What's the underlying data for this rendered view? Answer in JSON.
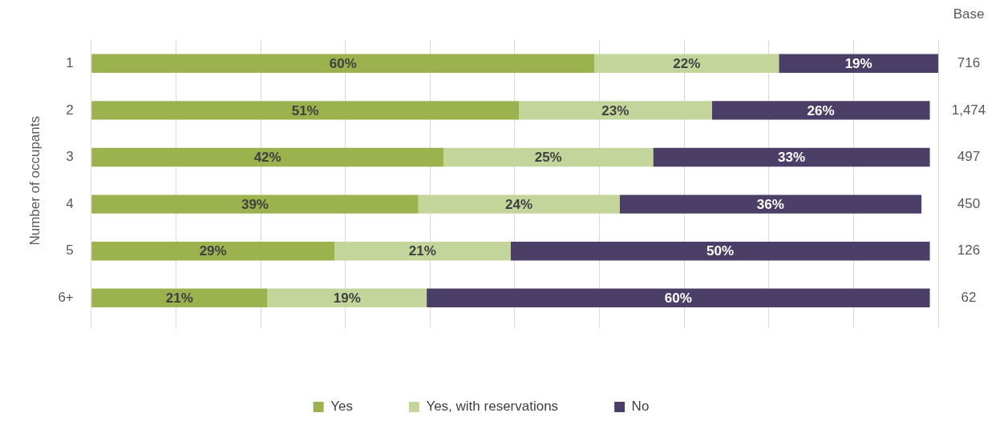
{
  "chart_data": {
    "type": "bar",
    "orientation": "horizontal",
    "stacked": true,
    "ylabel": "Number of occupants",
    "categories": [
      "1",
      "2",
      "3",
      "4",
      "5",
      "6+"
    ],
    "series": [
      {
        "name": "Yes",
        "color": "#9bb24f",
        "values": [
          60,
          51,
          42,
          39,
          29,
          21
        ],
        "value_labels": [
          "60%",
          "51%",
          "42%",
          "39%",
          "29%",
          "21%"
        ]
      },
      {
        "name": "Yes, with reservations",
        "color": "#c3d59a",
        "values": [
          22,
          23,
          25,
          24,
          21,
          19
        ],
        "value_labels": [
          "22%",
          "23%",
          "25%",
          "24%",
          "21%",
          "19%"
        ]
      },
      {
        "name": "No",
        "color": "#4b3f67",
        "values": [
          19,
          26,
          33,
          36,
          50,
          60
        ],
        "value_labels": [
          "19%",
          "26%",
          "33%",
          "36%",
          "50%",
          "60%"
        ]
      }
    ],
    "grid": "x",
    "legend": "bottom",
    "annotations": [
      "Base",
      "716",
      "1,474",
      "497",
      "450",
      "126",
      "62"
    ]
  }
}
